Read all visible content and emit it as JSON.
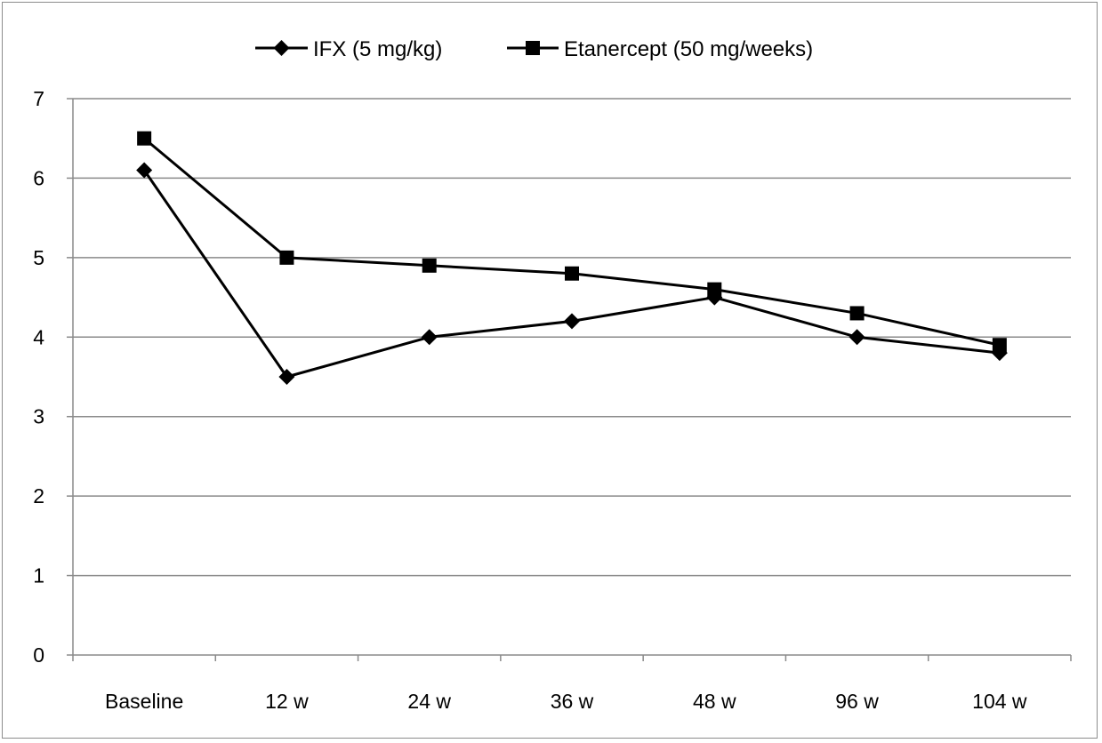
{
  "chart_data": {
    "type": "line",
    "categories": [
      "Baseline",
      "12 w",
      "24 w",
      "36 w",
      "48 w",
      "96 w",
      "104 w"
    ],
    "series": [
      {
        "name": "IFX (5 mg/kg)",
        "marker": "diamond",
        "color": "#000000",
        "values": [
          6.1,
          3.5,
          4.0,
          4.2,
          4.5,
          4.0,
          3.8
        ]
      },
      {
        "name": "Etanercept (50 mg/weeks)",
        "marker": "square",
        "color": "#000000",
        "values": [
          6.5,
          5.0,
          4.9,
          4.8,
          4.6,
          4.3,
          3.9
        ]
      }
    ],
    "ylim": [
      0,
      7
    ],
    "yticks": [
      0,
      1,
      2,
      3,
      4,
      5,
      6,
      7
    ],
    "grid": true,
    "legend": "top-center",
    "title": "",
    "xlabel": "",
    "ylabel": ""
  }
}
